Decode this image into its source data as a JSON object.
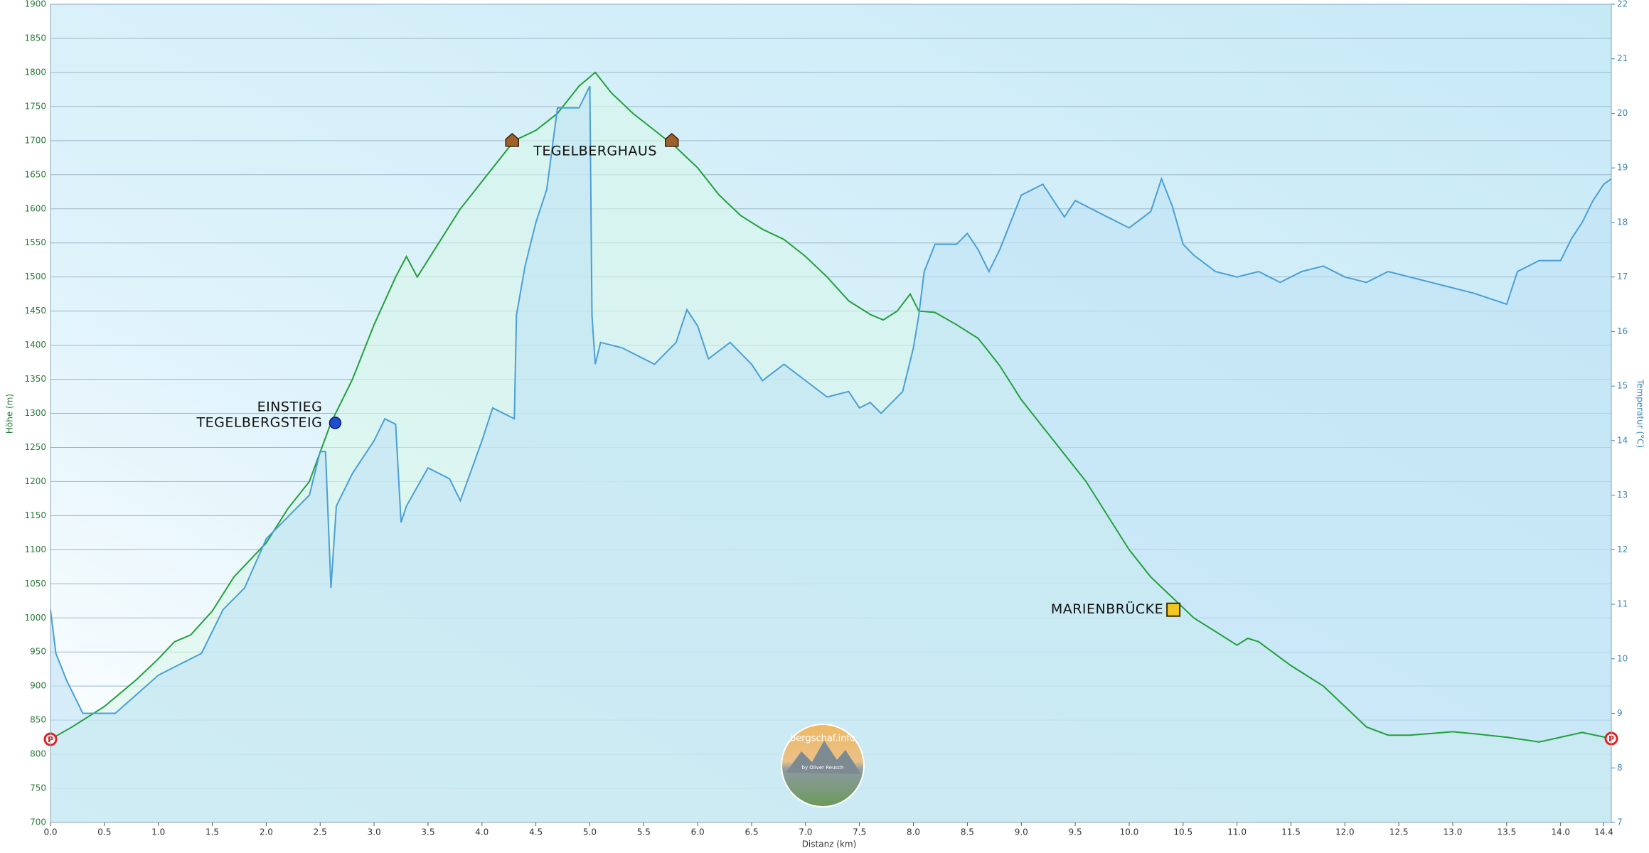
{
  "chart_data": {
    "type": "line",
    "x_label": "Distanz  (km)",
    "y_label": "Höhe (m)",
    "y2_label": "Temperatur (°C)",
    "xlim": [
      0,
      14.47
    ],
    "ylim": [
      700,
      1900
    ],
    "y2lim": [
      7,
      22
    ],
    "grid": true,
    "xticks": [
      {
        "value": 0,
        "label": "0.0"
      },
      0.5,
      {
        "value": 1,
        "label": "1.0"
      },
      1.5,
      {
        "value": 2,
        "label": "2.0"
      },
      2.5,
      {
        "value": 3,
        "label": "3.0"
      },
      3.5,
      {
        "value": 4,
        "label": "4.0"
      },
      4.5,
      {
        "value": 5,
        "label": "5.0"
      },
      5.5,
      {
        "value": 6,
        "label": "6.0"
      },
      6.5,
      {
        "value": 7,
        "label": "7.0"
      },
      7.5,
      {
        "value": 8,
        "label": "8.0"
      },
      8.5,
      {
        "value": 9,
        "label": "9.0"
      },
      9.5,
      {
        "value": 10,
        "label": "10.0"
      },
      10.5,
      {
        "value": 11,
        "label": "11.0"
      },
      11.5,
      {
        "value": 12,
        "label": "12.0"
      },
      12.5,
      {
        "value": 13,
        "label": "13.0"
      },
      13.5,
      {
        "value": 14,
        "label": "14.0"
      },
      14.4
    ],
    "yticks": [
      700,
      750,
      800,
      850,
      900,
      950,
      1000,
      1050,
      1100,
      1150,
      1200,
      1250,
      1300,
      1350,
      1400,
      1450,
      1500,
      1550,
      1600,
      1650,
      1700,
      1750,
      1800,
      1850,
      1900
    ],
    "y2ticks": [
      7,
      8,
      9,
      10,
      11,
      12,
      13,
      14,
      15,
      16,
      17,
      18,
      19,
      20,
      21,
      22
    ],
    "series": [
      {
        "name": "Höhe",
        "color": "#22a03c",
        "fill": "#d8f6ea",
        "x": [
          0,
          0.2,
          0.5,
          0.8,
          1.0,
          1.15,
          1.3,
          1.5,
          1.7,
          2.0,
          2.2,
          2.4,
          2.6,
          2.8,
          3.0,
          3.2,
          3.3,
          3.4,
          3.6,
          3.8,
          4.0,
          4.2,
          4.3,
          4.5,
          4.7,
          4.9,
          5.05,
          5.2,
          5.4,
          5.6,
          5.8,
          6.0,
          6.2,
          6.4,
          6.6,
          6.8,
          7.0,
          7.2,
          7.4,
          7.6,
          7.72,
          7.85,
          7.97,
          8.05,
          8.2,
          8.4,
          8.6,
          8.8,
          9.0,
          9.2,
          9.4,
          9.6,
          9.8,
          10.0,
          10.2,
          10.4,
          10.6,
          10.8,
          11.0,
          11.1,
          11.2,
          11.5,
          11.8,
          12.0,
          12.2,
          12.4,
          12.6,
          13.0,
          13.2,
          13.5,
          13.8,
          14.0,
          14.2,
          14.47
        ],
        "values": [
          822,
          840,
          870,
          910,
          940,
          965,
          975,
          1010,
          1060,
          1110,
          1160,
          1200,
          1286,
          1350,
          1430,
          1500,
          1530,
          1500,
          1550,
          1600,
          1640,
          1680,
          1700,
          1715,
          1740,
          1780,
          1800,
          1770,
          1740,
          1715,
          1690,
          1660,
          1620,
          1590,
          1570,
          1555,
          1530,
          1500,
          1465,
          1445,
          1437,
          1450,
          1475,
          1450,
          1448,
          1430,
          1410,
          1370,
          1320,
          1280,
          1240,
          1200,
          1150,
          1100,
          1060,
          1030,
          1000,
          980,
          960,
          970,
          965,
          930,
          900,
          870,
          840,
          828,
          828,
          833,
          830,
          825,
          818,
          825,
          832,
          823
        ]
      },
      {
        "name": "Temperatur",
        "color": "#4a9fd6",
        "fill": "#bfe3f5",
        "axis": "y2",
        "x": [
          0,
          0.05,
          0.15,
          0.3,
          0.6,
          0.8,
          1.0,
          1.2,
          1.4,
          1.6,
          1.8,
          2.0,
          2.2,
          2.4,
          2.5,
          2.55,
          2.6,
          2.65,
          2.8,
          3.0,
          3.1,
          3.2,
          3.25,
          3.3,
          3.5,
          3.7,
          3.8,
          4.0,
          4.1,
          4.3,
          4.32,
          4.4,
          4.5,
          4.6,
          4.7,
          4.9,
          5.0,
          5.02,
          5.05,
          5.1,
          5.3,
          5.6,
          5.8,
          5.9,
          6.0,
          6.1,
          6.3,
          6.4,
          6.5,
          6.6,
          6.8,
          7.0,
          7.2,
          7.4,
          7.5,
          7.6,
          7.7,
          7.8,
          7.9,
          8.0,
          8.05,
          8.1,
          8.2,
          8.4,
          8.5,
          8.6,
          8.7,
          8.8,
          8.9,
          9.0,
          9.2,
          9.4,
          9.5,
          9.8,
          10.0,
          10.2,
          10.3,
          10.4,
          10.5,
          10.6,
          10.8,
          11.0,
          11.2,
          11.4,
          11.6,
          11.8,
          12.0,
          12.2,
          12.4,
          12.8,
          13.0,
          13.2,
          13.5,
          13.6,
          13.8,
          14.0,
          14.1,
          14.2,
          14.3,
          14.4,
          14.47
        ],
        "values": [
          10.9,
          10.1,
          9.6,
          9.0,
          9.0,
          9.35,
          9.7,
          9.9,
          10.1,
          10.9,
          11.3,
          12.2,
          12.6,
          13.0,
          13.8,
          13.8,
          11.3,
          12.8,
          13.4,
          14.0,
          14.4,
          14.3,
          12.5,
          12.8,
          13.5,
          13.3,
          12.9,
          14.0,
          14.6,
          14.4,
          16.3,
          17.2,
          18.0,
          18.6,
          20.1,
          20.1,
          20.5,
          16.3,
          15.4,
          15.8,
          15.7,
          15.4,
          15.8,
          16.4,
          16.1,
          15.5,
          15.8,
          15.6,
          15.4,
          15.1,
          15.4,
          15.1,
          14.8,
          14.9,
          14.6,
          14.7,
          14.5,
          14.7,
          14.9,
          15.7,
          16.3,
          17.1,
          17.6,
          17.6,
          17.8,
          17.5,
          17.1,
          17.5,
          18.0,
          18.5,
          18.7,
          18.1,
          18.4,
          18.1,
          17.9,
          18.2,
          18.8,
          18.3,
          17.6,
          17.4,
          17.1,
          17.0,
          17.1,
          16.9,
          17.1,
          17.2,
          17.0,
          16.9,
          17.1,
          16.9,
          16.8,
          16.7,
          16.5,
          17.1,
          17.3,
          17.3,
          17.7,
          18.0,
          18.4,
          18.7,
          18.8
        ]
      }
    ],
    "annotations": [
      {
        "text": "P",
        "x": 0,
        "y": 822,
        "icon": "parking"
      },
      {
        "text": "P",
        "x": 14.47,
        "y": 823,
        "icon": "parking"
      },
      {
        "lines": [
          "EINSTIEG",
          "TEGELBERGSTEIG"
        ],
        "x": 2.6,
        "y": 1286,
        "icon": "pin"
      },
      {
        "text": "TEGELBERGHAUS",
        "x": 4.28,
        "y": 1700,
        "icon": "hut"
      },
      {
        "x": 5.76,
        "y": 1700,
        "icon": "hut"
      },
      {
        "text": "MARIENBRÜCKE",
        "x": 10.41,
        "y": 1012,
        "icon": "bridge"
      }
    ],
    "watermark": {
      "title": "bergschaf.info",
      "subtitle": "by Oliver Reusch"
    }
  }
}
